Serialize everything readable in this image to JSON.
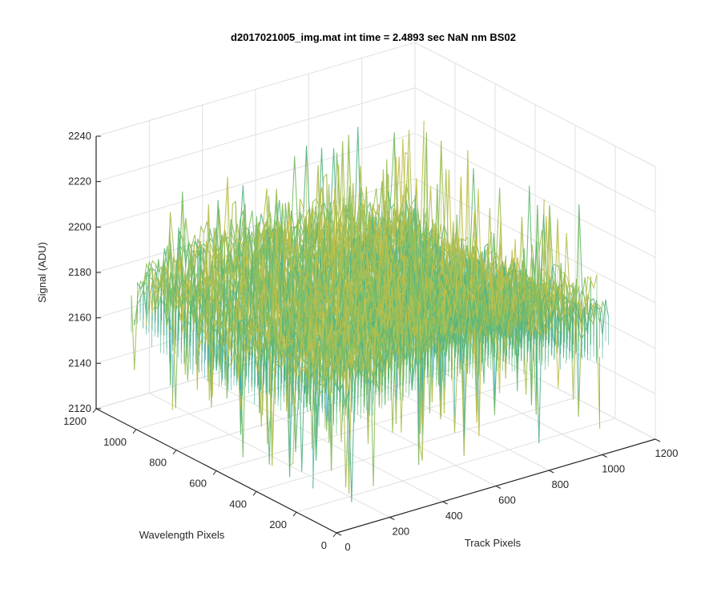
{
  "chart_data": {
    "type": "surface",
    "title": "d2017021005_img.mat int time = 2.4893 sec  NaN nm BS02",
    "xlabel": "Track Pixels",
    "ylabel": "Wavelength Pixels",
    "zlabel": "Signal (ADU)",
    "xlim": [
      0,
      1200
    ],
    "ylim": [
      0,
      1200
    ],
    "zlim": [
      2120,
      2240
    ],
    "x_ticks": [
      0,
      200,
      400,
      600,
      800,
      1000,
      1200
    ],
    "y_ticks": [
      0,
      200,
      400,
      600,
      800,
      1000,
      1200
    ],
    "z_ticks": [
      2120,
      2140,
      2160,
      2180,
      2200,
      2220,
      2240
    ],
    "x_tick_labels": [
      "0",
      "200",
      "400",
      "600",
      "800",
      "1000",
      "1200"
    ],
    "y_tick_labels": [
      "0",
      "200",
      "400",
      "600",
      "800",
      "1000",
      "1200"
    ],
    "z_tick_labels": [
      "2120",
      "2140",
      "2160",
      "2180",
      "2200",
      "2220",
      "2240"
    ],
    "grid": true,
    "colormap": "parula",
    "surface_extent": {
      "x": [
        0,
        1024
      ],
      "y": [
        0,
        1024
      ]
    },
    "signal": {
      "typical_min": 2155,
      "typical_max": 2210,
      "mean": 2183,
      "spike_min": 2128,
      "spike_max": 2225
    },
    "colors": {
      "low": "#1aa0c8",
      "mid": "#6cbd6a",
      "high": "#eac13a",
      "grid": "#e0e0e0",
      "axis": "#262626"
    }
  }
}
